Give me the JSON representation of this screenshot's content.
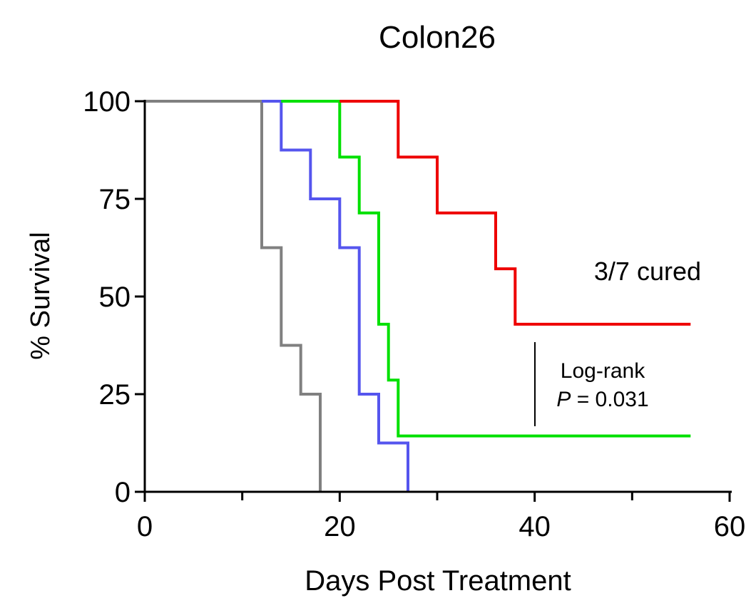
{
  "chart_data": {
    "type": "line",
    "title": "Colon26",
    "xlabel": "Days Post Treatment",
    "ylabel": "% Survival",
    "xlim": [
      0,
      60
    ],
    "ylim": [
      0,
      100
    ],
    "x_ticks": [
      "0",
      "20",
      "40",
      "60"
    ],
    "y_ticks": [
      "0",
      "25",
      "50",
      "75",
      "100"
    ],
    "x_minor_ticks": [
      10,
      30,
      50
    ],
    "grid": false,
    "series": [
      {
        "color": "#808080",
        "points": [
          [
            0,
            100
          ],
          [
            12,
            100
          ],
          [
            12,
            62.5
          ],
          [
            14,
            62.5
          ],
          [
            14,
            37.5
          ],
          [
            16,
            37.5
          ],
          [
            16,
            25
          ],
          [
            18,
            25
          ],
          [
            18,
            0
          ]
        ]
      },
      {
        "color": "#5555ee",
        "points": [
          [
            12,
            100
          ],
          [
            14,
            100
          ],
          [
            14,
            87.5
          ],
          [
            17,
            87.5
          ],
          [
            17,
            75
          ],
          [
            20,
            75
          ],
          [
            20,
            62.5
          ],
          [
            22,
            62.5
          ],
          [
            22,
            25
          ],
          [
            24,
            25
          ],
          [
            24,
            12.5
          ],
          [
            27,
            12.5
          ],
          [
            27,
            0
          ]
        ]
      },
      {
        "color": "#00e000",
        "points": [
          [
            14,
            100
          ],
          [
            20,
            100
          ],
          [
            20,
            85.7
          ],
          [
            22,
            85.7
          ],
          [
            22,
            71.4
          ],
          [
            24,
            71.4
          ],
          [
            24,
            42.9
          ],
          [
            25,
            42.9
          ],
          [
            25,
            28.6
          ],
          [
            26,
            28.6
          ],
          [
            26,
            14.3
          ],
          [
            56,
            14.3
          ]
        ]
      },
      {
        "color": "#ee0000",
        "points": [
          [
            20,
            100
          ],
          [
            26,
            100
          ],
          [
            26,
            85.7
          ],
          [
            30,
            85.7
          ],
          [
            30,
            71.4
          ],
          [
            36,
            71.4
          ],
          [
            36,
            57.1
          ],
          [
            38,
            57.1
          ],
          [
            38,
            42.9
          ],
          [
            56,
            42.9
          ]
        ]
      }
    ],
    "annotations": {
      "cured": "3/7 cured",
      "logrank_label": "Log-rank",
      "p_symbol": "P",
      "p_value": "= 0.031"
    }
  }
}
